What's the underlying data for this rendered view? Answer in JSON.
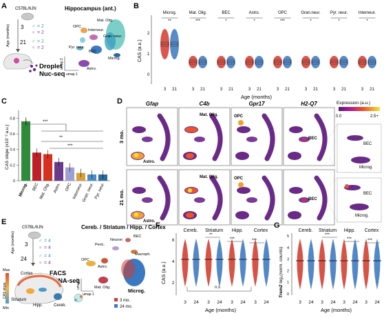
{
  "panel_letters": {
    "a": "A",
    "b": "B",
    "c": "C",
    "d": "D",
    "e": "E",
    "f": "F",
    "g": "G"
  },
  "panelA": {
    "strain": "C57BL/6JN",
    "age_label": "Age (months)",
    "ages": [
      "3",
      "21"
    ],
    "n_male": "= 2",
    "n_female": "= 2",
    "method_line1": "Droplet",
    "method_line2": "Nuc-seq",
    "umap_title": "Hippocampus (ant.)",
    "umap_x": "umap 1",
    "umap_y": "umap 2",
    "clusters": [
      "OPC",
      "Mat. Olig.",
      "Interneur.",
      "Gran. neur.",
      "Pyr. neur.",
      "BEC",
      "Microg.",
      "Astro."
    ]
  },
  "panelB": {
    "ylabel": "CAS (a.u.)",
    "xlabel": "Age (months)",
    "ages": [
      "3",
      "21"
    ],
    "yticks": [
      "0",
      "1",
      "2"
    ],
    "groups": [
      "Microg.",
      "Mat. Olig.",
      "BEC",
      "Astro.",
      "OPC",
      "Gran.neur.",
      "Pyr. neur.",
      "Interneur."
    ],
    "sig": [
      "**",
      "***",
      "*",
      "*",
      "***",
      "*",
      "*",
      "*"
    ]
  },
  "panelC": {
    "ylabel": "CAS slope (x10⁻² a.u.)",
    "yticks": [
      "0",
      "0.2",
      "0.4",
      "0.6",
      "0.8"
    ],
    "sig": [
      "***",
      "**",
      "***"
    ],
    "chart_data": {
      "type": "bar",
      "categories": [
        "Microg.",
        "BEC",
        "Mat. Olig.",
        "Astro.",
        "OPC",
        "Interneur.",
        "Gran. neur.",
        "Pyr. neur."
      ],
      "values": [
        0.76,
        0.36,
        0.34,
        0.24,
        0.17,
        0.1,
        0.08,
        0.08
      ],
      "ylim": [
        0,
        0.9
      ],
      "colors": [
        "#2e8b3a",
        "#c0202a",
        "#d8301c",
        "#6a3a8c",
        "#9f9fd6",
        "#d9a03a",
        "#4a8cc4",
        "#2a6aa0"
      ]
    }
  },
  "panelD": {
    "genes": [
      "Gfap",
      "C4b",
      "Gpr17",
      "H2-Q7"
    ],
    "rows": [
      "3 mo.",
      "21 mo."
    ],
    "legend_title": "Expression (a.u.)",
    "legend_min": "0.0",
    "legend_max": "2.5+",
    "labels": {
      "astro": "Astro.",
      "matolig": "Mat. Olig.",
      "opc": "OPC",
      "bec": "BEC",
      "microg": "Microg."
    }
  },
  "panelE": {
    "strain": "C57BL/6JN",
    "age_label": "Age (months)",
    "ages": [
      "3",
      "24"
    ],
    "n_male": "= 4",
    "n_female": "= 4",
    "method_line1": "FACS",
    "method_line2": "scRNA-seq",
    "regions_title": "Cereb. / Striatum / Hipp. / Cortex",
    "brain_regions": [
      "Cortex",
      "Striatum",
      "Hipp.",
      "Cereb."
    ],
    "cas_scale": {
      "max": "Max",
      "label": "CAS slope",
      "min": "Min"
    },
    "umap_x": "umap 1",
    "umap_y": "umap 2",
    "clusters": [
      "Peric.",
      "Neuron",
      "BEC",
      "OPC",
      "Astro.",
      "Macroph.",
      "Mat. Olig.",
      "Microg."
    ],
    "legend": [
      {
        "label": "3 mo.",
        "color": "#d33a2c"
      },
      {
        "label": "24 mo.",
        "color": "#3a78c0"
      }
    ]
  },
  "panelF": {
    "ylabel": "CAS (a.u.)",
    "xlabel": "Age (months)",
    "regions": [
      "Cereb.",
      "Striatum",
      "Hipp.",
      "Cortex"
    ],
    "ages": [
      "3",
      "24"
    ],
    "yticks": [
      "2",
      "4",
      "6"
    ],
    "sig": [
      "**",
      "***",
      "***"
    ],
    "ns": "n.s"
  },
  "panelG": {
    "ylabel_prefix": "Trem2",
    "ylabel_rest": " log₂(norm. counts)",
    "xlabel": "Age (months)",
    "regions": [
      "Cereb.",
      "Striatum",
      "Hipp.",
      "Cortex"
    ],
    "ages": [
      "3",
      "24"
    ],
    "yticks": [
      "0",
      "1",
      "2",
      "3",
      "4",
      "5"
    ],
    "sig": [
      "***",
      "***",
      "***"
    ]
  }
}
